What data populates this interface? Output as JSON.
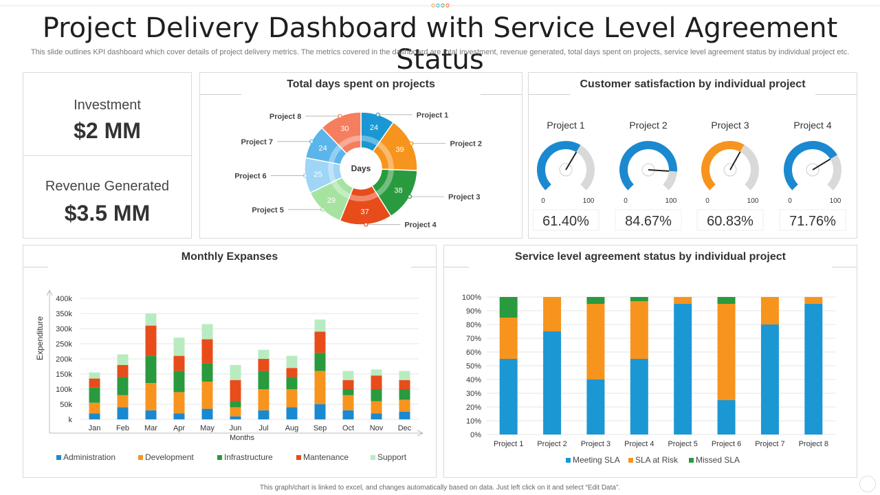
{
  "header": {
    "title": "Project Delivery Dashboard with Service Level Agreement Status",
    "subtitle": "This slide outlines KPI dashboard which cover details of project delivery metrics. The metrics covered in the dashboard are total investment, revenue generated, total days spent on projects, service level agreement status by individual project etc."
  },
  "kpis": {
    "investment_label": "Investment",
    "investment_value": "$2 MM",
    "revenue_label": "Revenue Generated",
    "revenue_value": "$3.5 MM"
  },
  "footer": "This graph/chart is linked to excel, and changes automatically based on data. Just left click on it and select “Edit Data”.",
  "chart_data": [
    {
      "type": "pie",
      "title": "Total days spent on projects",
      "center_label": "Days",
      "categories": [
        "Project 1",
        "Project 2",
        "Project 3",
        "Project 4",
        "Project 5",
        "Project 6",
        "Project 7",
        "Project 8"
      ],
      "values": [
        24,
        39,
        38,
        37,
        29,
        25,
        24,
        30
      ],
      "colors": [
        "#1b97d3",
        "#f7941d",
        "#2a9a3e",
        "#e84c1b",
        "#a6e3a1",
        "#9fd5f5",
        "#5bb5ea",
        "#f57e5e"
      ]
    },
    {
      "type": "gauge",
      "title": "Customer satisfaction  by individual project",
      "gauges": [
        {
          "name": "Project 1",
          "value": 61.4,
          "label": "61.40%",
          "color": "#1b89d0"
        },
        {
          "name": "Project 2",
          "value": 84.67,
          "label": "84.67%",
          "color": "#1b89d0"
        },
        {
          "name": "Project 3",
          "value": 60.83,
          "label": "60.83%",
          "color": "#f7941d"
        },
        {
          "name": "Project 4",
          "value": 71.76,
          "label": "71.76%",
          "color": "#1b89d0"
        }
      ],
      "min_label": "0",
      "max_label": "100",
      "track_color": "#d9d9d9"
    },
    {
      "type": "bar",
      "stacked": true,
      "title": "Monthly Expanses",
      "xlabel": "Months",
      "ylabel": "Expenditure",
      "categories": [
        "Jan",
        "Feb",
        "Mar",
        "Apr",
        "May",
        "Jun",
        "Jul",
        "Aug",
        "Sep",
        "Oct",
        "Nov",
        "Dec"
      ],
      "yticks": [
        "k",
        "50k",
        "100k",
        "150k",
        "200k",
        "250k",
        "300k",
        "350k",
        "400k"
      ],
      "ylim": [
        0,
        400
      ],
      "series": [
        {
          "name": "Administration",
          "color": "#1b89d0",
          "values": [
            20,
            40,
            30,
            20,
            35,
            10,
            30,
            40,
            50,
            30,
            20,
            25
          ]
        },
        {
          "name": "Development",
          "color": "#f7941d",
          "values": [
            35,
            40,
            90,
            70,
            90,
            30,
            70,
            60,
            110,
            50,
            40,
            40
          ]
        },
        {
          "name": "Infrastructure",
          "color": "#2a9a3e",
          "values": [
            50,
            60,
            90,
            70,
            60,
            20,
            60,
            40,
            60,
            20,
            40,
            35
          ]
        },
        {
          "name": "Mantenance",
          "color": "#e84c1b",
          "values": [
            30,
            40,
            100,
            50,
            80,
            70,
            40,
            30,
            70,
            30,
            45,
            30
          ]
        },
        {
          "name": "Support",
          "color": "#b9ebc0",
          "values": [
            20,
            35,
            40,
            60,
            50,
            50,
            30,
            40,
            40,
            30,
            20,
            30
          ]
        }
      ]
    },
    {
      "type": "bar",
      "stacked": true,
      "title": "Service level agreement status  by individual project",
      "categories": [
        "Project 1",
        "Project 2",
        "Project 3",
        "Project 4",
        "Project 5",
        "Project 6",
        "Project 7",
        "Project 8"
      ],
      "yticks": [
        "0%",
        "10%",
        "20%",
        "30%",
        "40%",
        "50%",
        "60%",
        "70%",
        "80%",
        "90%",
        "100%"
      ],
      "ylim": [
        0,
        100
      ],
      "series": [
        {
          "name": "Meeting SLA",
          "color": "#1b97d3",
          "values": [
            55,
            75,
            40,
            55,
            95,
            25,
            80,
            95
          ]
        },
        {
          "name": "SLA at Risk",
          "color": "#f7941d",
          "values": [
            30,
            25,
            55,
            42,
            5,
            70,
            20,
            5
          ]
        },
        {
          "name": "Missed SLA",
          "color": "#2a9a3e",
          "values": [
            15,
            0,
            5,
            3,
            0,
            5,
            0,
            0
          ]
        }
      ]
    }
  ]
}
